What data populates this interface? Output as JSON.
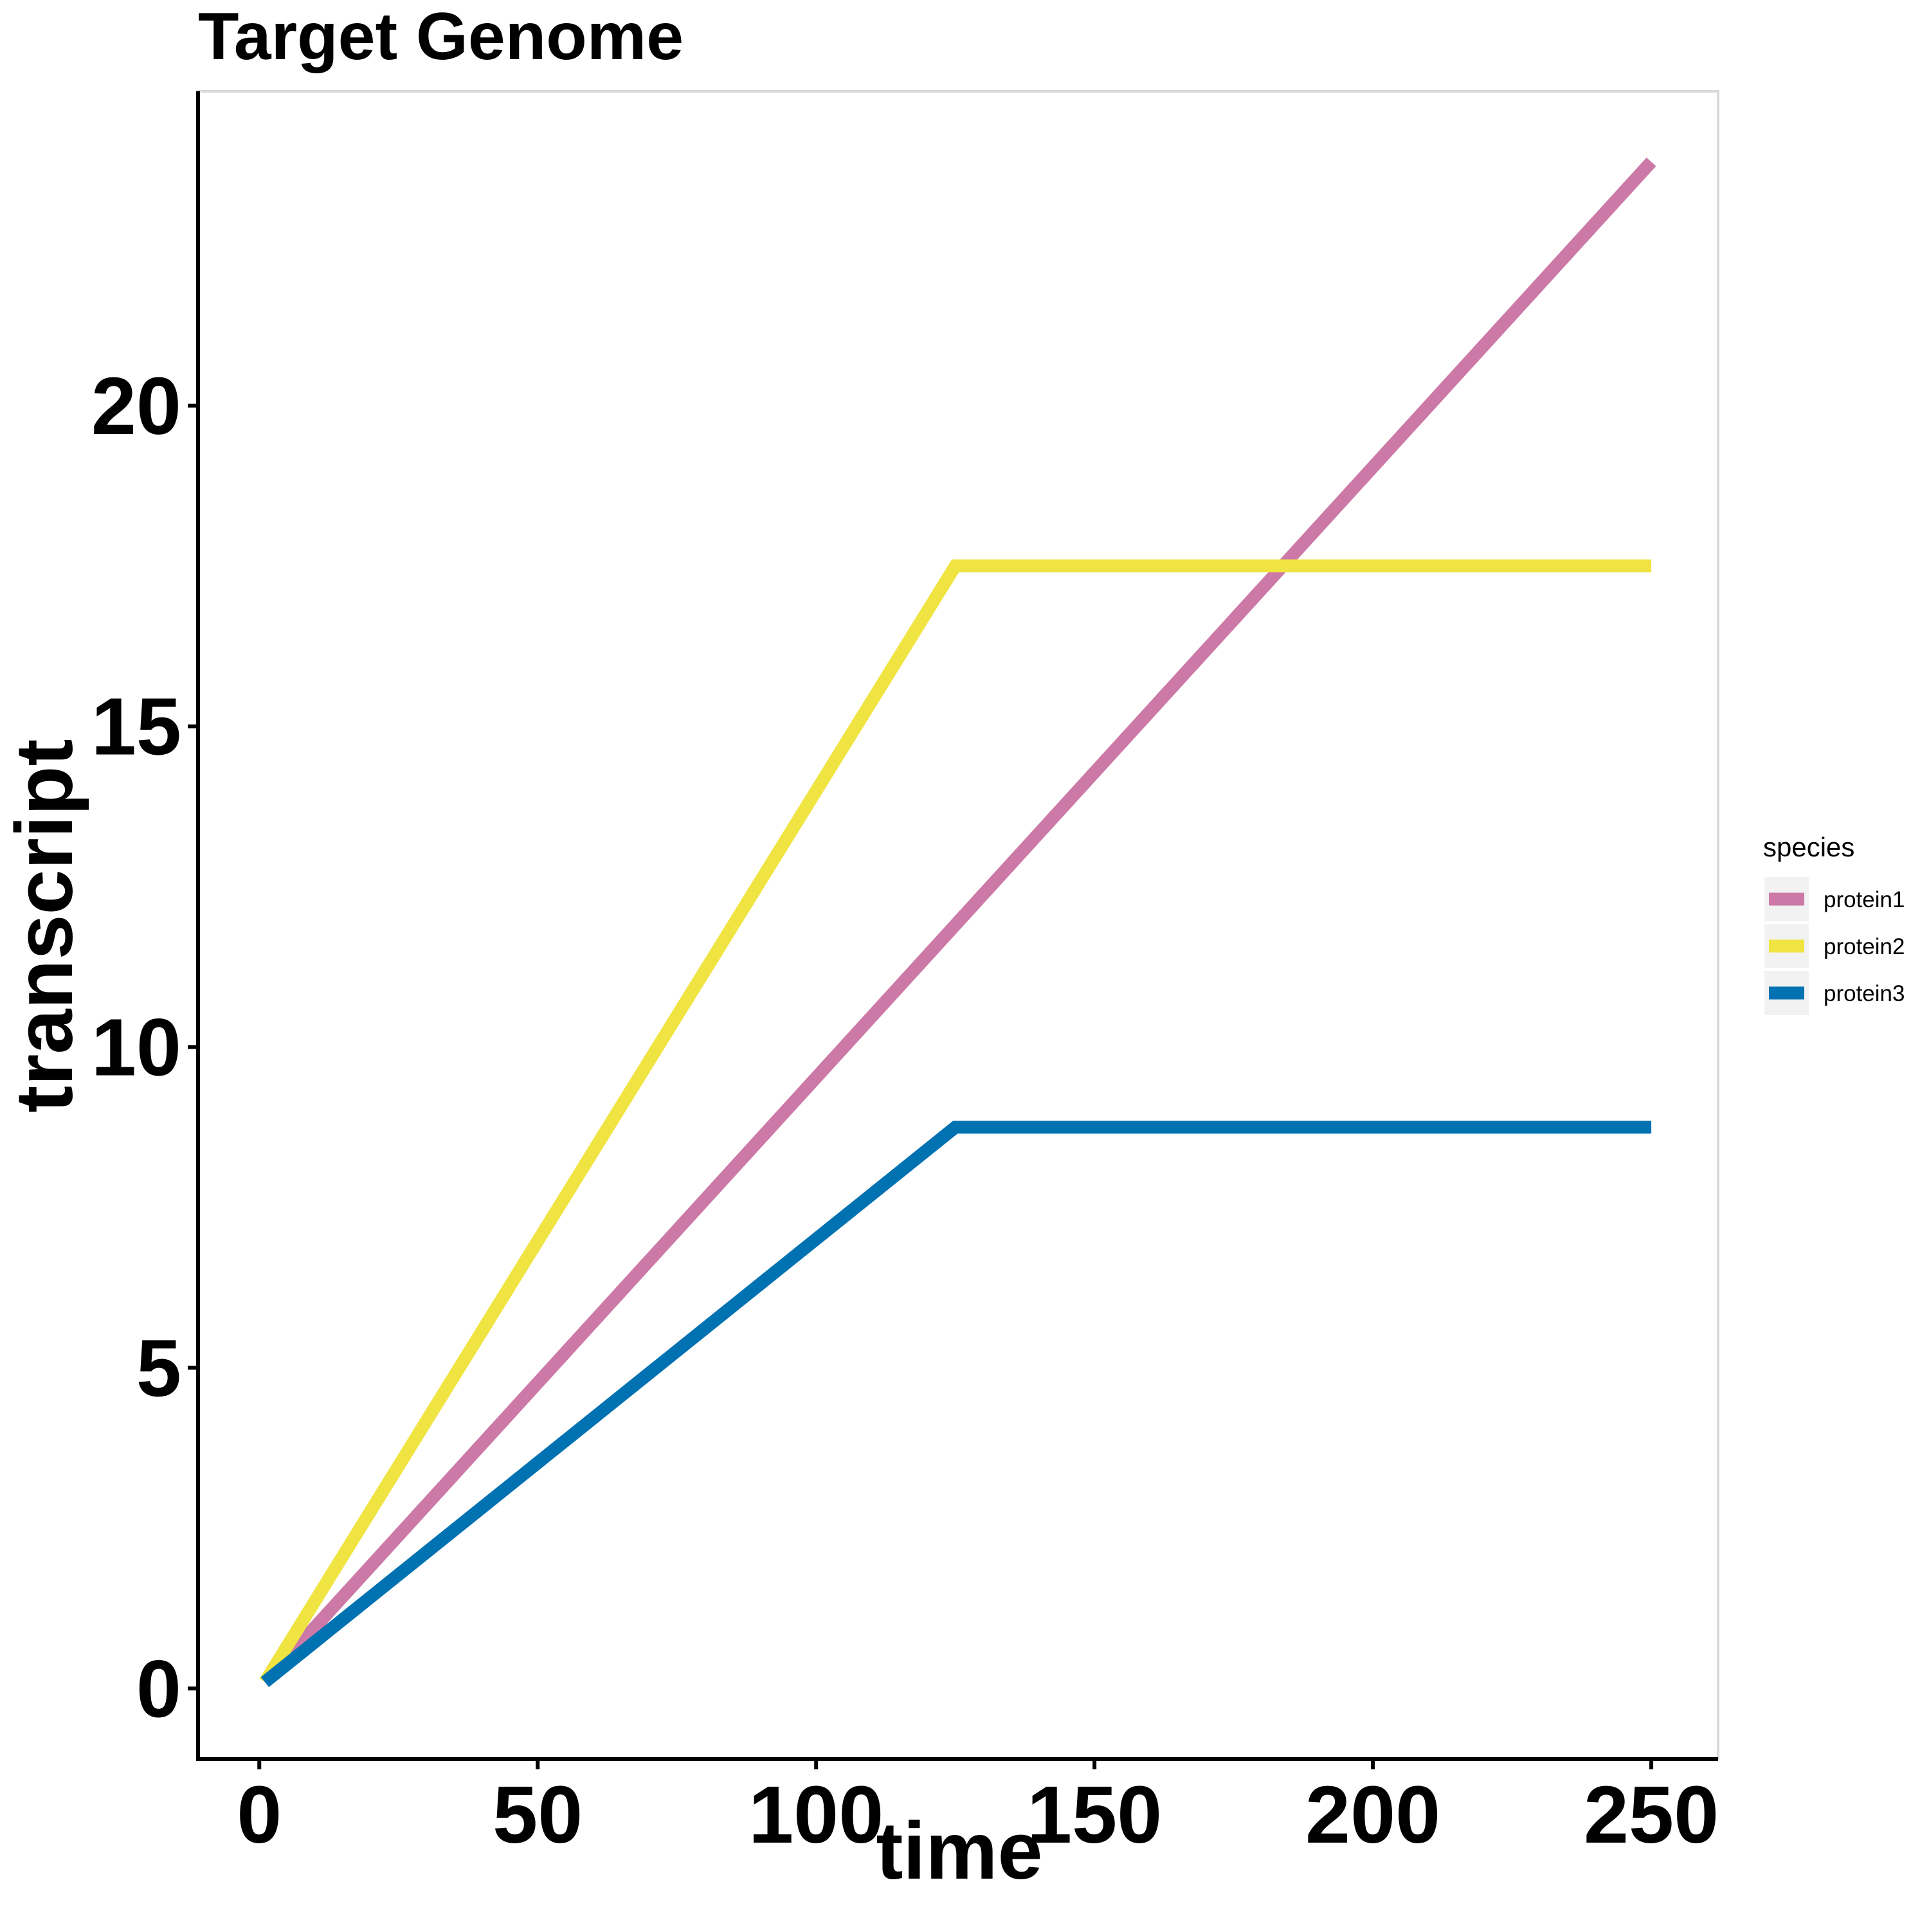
{
  "chart_data": {
    "type": "line",
    "title": "Target Genome",
    "xlabel": "time",
    "ylabel": "transcript",
    "xlim": [
      -11,
      262
    ],
    "ylim": [
      -1.1,
      24.9
    ],
    "xticks": [
      0,
      50,
      100,
      150,
      200,
      250
    ],
    "yticks": [
      0,
      5,
      10,
      15,
      20
    ],
    "grid": false,
    "legend": {
      "title": "species",
      "position": "right"
    },
    "series": [
      {
        "name": "protein1",
        "color": "#CC79A7",
        "x": [
          1,
          250
        ],
        "y": [
          0.1,
          23.8
        ]
      },
      {
        "name": "protein2",
        "color": "#F0E442",
        "x": [
          1,
          125,
          250
        ],
        "y": [
          0.1,
          17.5,
          17.5
        ]
      },
      {
        "name": "protein3",
        "color": "#0072B2",
        "x": [
          1,
          125,
          250
        ],
        "y": [
          0.1,
          8.75,
          8.75
        ]
      }
    ]
  }
}
